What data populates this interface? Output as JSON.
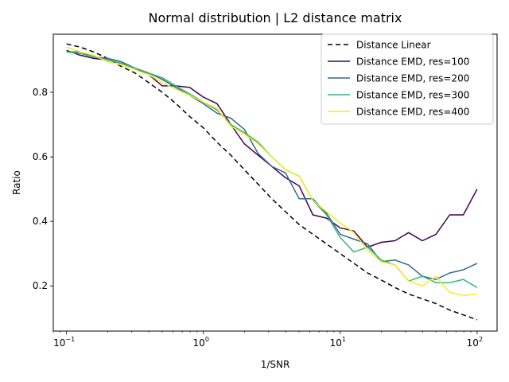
{
  "chart_data": {
    "type": "line",
    "title": "Normal distribution | L2 distance matrix",
    "xlabel": "1/SNR",
    "ylabel": "Ratio",
    "xscale": "log",
    "xlim": [
      0.08,
      140
    ],
    "ylim": [
      0.06,
      0.98
    ],
    "xticks": [
      {
        "value": 0.1,
        "base": "10",
        "exp": "−1"
      },
      {
        "value": 1,
        "base": "10",
        "exp": "0"
      },
      {
        "value": 10,
        "base": "10",
        "exp": "1"
      },
      {
        "value": 100,
        "base": "10",
        "exp": "2"
      }
    ],
    "yticks": [
      {
        "value": 0.2,
        "label": "0.2"
      },
      {
        "value": 0.4,
        "label": "0.4"
      },
      {
        "value": 0.6,
        "label": "0.6"
      },
      {
        "value": 0.8,
        "label": "0.8"
      }
    ],
    "grid": false,
    "legend_position": "upper right",
    "x": [
      0.1,
      0.126,
      0.158,
      0.2,
      0.251,
      0.316,
      0.398,
      0.501,
      0.631,
      0.794,
      1.0,
      1.259,
      1.585,
      1.995,
      2.512,
      3.162,
      3.981,
      5.012,
      6.31,
      7.943,
      10.0,
      12.59,
      15.85,
      19.95,
      25.12,
      31.62,
      39.81,
      50.12,
      63.1,
      79.43,
      100.0
    ],
    "series": [
      {
        "name": "Distance Linear",
        "color": "#000000",
        "dash": "6,4",
        "values": [
          0.95,
          0.94,
          0.925,
          0.905,
          0.88,
          0.86,
          0.83,
          0.8,
          0.765,
          0.725,
          0.69,
          0.645,
          0.605,
          0.56,
          0.515,
          0.47,
          0.43,
          0.39,
          0.36,
          0.33,
          0.3,
          0.27,
          0.24,
          0.218,
          0.195,
          0.175,
          0.16,
          0.145,
          0.125,
          0.11,
          0.095
        ]
      },
      {
        "name": "Distance EMD, res=100",
        "color": "#440154",
        "dash": "",
        "values": [
          0.93,
          0.915,
          0.905,
          0.9,
          0.89,
          0.875,
          0.855,
          0.82,
          0.82,
          0.815,
          0.785,
          0.765,
          0.7,
          0.64,
          0.605,
          0.57,
          0.535,
          0.51,
          0.42,
          0.41,
          0.38,
          0.37,
          0.32,
          0.335,
          0.34,
          0.365,
          0.34,
          0.36,
          0.42,
          0.42,
          0.5
        ]
      },
      {
        "name": "Distance EMD, res=200",
        "color": "#31688e",
        "dash": "",
        "values": [
          0.925,
          0.925,
          0.91,
          0.905,
          0.895,
          0.875,
          0.86,
          0.84,
          0.815,
          0.79,
          0.765,
          0.735,
          0.72,
          0.685,
          0.61,
          0.57,
          0.55,
          0.47,
          0.47,
          0.425,
          0.36,
          0.345,
          0.33,
          0.275,
          0.28,
          0.265,
          0.23,
          0.22,
          0.24,
          0.25,
          0.27
        ]
      },
      {
        "name": "Distance EMD, res=300",
        "color": "#35b779",
        "dash": "",
        "values": [
          0.925,
          0.92,
          0.91,
          0.9,
          0.89,
          0.875,
          0.86,
          0.845,
          0.82,
          0.795,
          0.77,
          0.745,
          0.7,
          0.675,
          0.645,
          0.6,
          0.56,
          0.54,
          0.465,
          0.42,
          0.35,
          0.305,
          0.32,
          0.28,
          0.265,
          0.215,
          0.23,
          0.21,
          0.21,
          0.22,
          0.195
        ]
      },
      {
        "name": "Distance EMD, res=400",
        "color": "#fde725",
        "dash": "",
        "values": [
          0.94,
          0.925,
          0.915,
          0.895,
          0.885,
          0.87,
          0.855,
          0.83,
          0.81,
          0.79,
          0.77,
          0.75,
          0.695,
          0.67,
          0.64,
          0.6,
          0.56,
          0.54,
          0.465,
          0.43,
          0.395,
          0.365,
          0.31,
          0.275,
          0.265,
          0.215,
          0.2,
          0.23,
          0.18,
          0.17,
          0.175
        ]
      }
    ]
  }
}
